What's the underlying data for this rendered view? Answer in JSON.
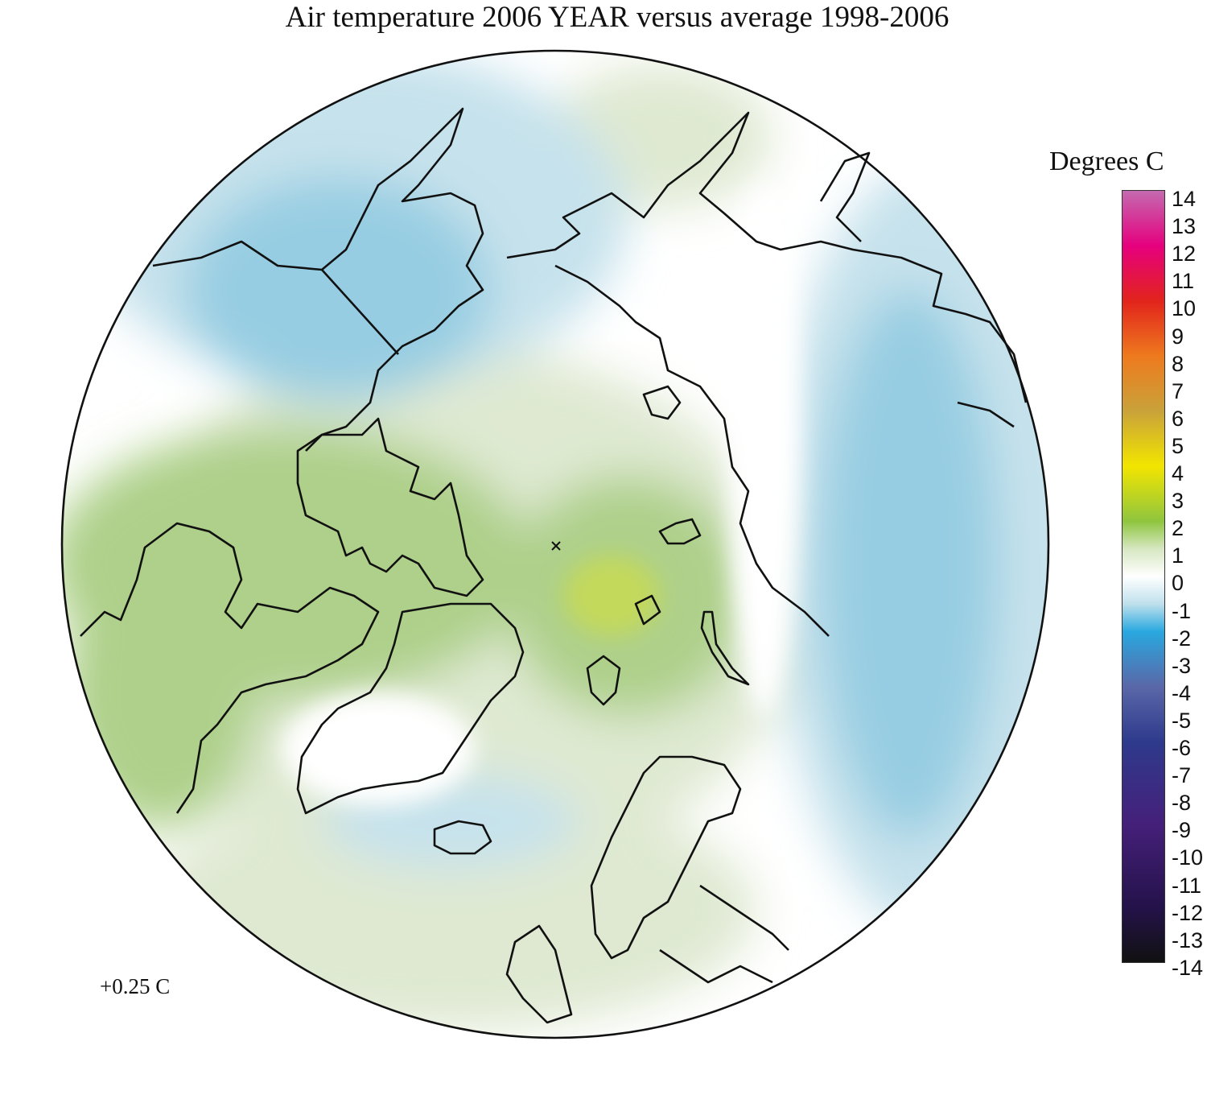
{
  "title": "Air temperature 2006 YEAR versus average 1998-2006",
  "legend": {
    "title": "Degrees C",
    "ticks": [
      "14",
      "13",
      "12",
      "11",
      "10",
      "9",
      "8",
      "7",
      "6",
      "5",
      "4",
      "3",
      "2",
      "1",
      "0",
      "-1",
      "-2",
      "-3",
      "-4",
      "-5",
      "-6",
      "-7",
      "-8",
      "-9",
      "-10",
      "-11",
      "-12",
      "-13",
      "-14"
    ],
    "range": [
      -14,
      14
    ],
    "colors": {
      "14": "#c46ab0",
      "12": "#e6007e",
      "10": "#e2241c",
      "8": "#ee7a1e",
      "6": "#c9a23a",
      "4": "#f2e500",
      "2": "#8fc53f",
      "1": "#d7e7c2",
      "0": "#ffffff",
      "-1": "#bfe0ec",
      "-2": "#29a8df",
      "-4": "#5a67a8",
      "-6": "#2e3a8c",
      "-9": "#45207a",
      "-12": "#24124a",
      "-14": "#111111"
    }
  },
  "annotation": "+0.25 C",
  "map": {
    "projection": "north polar stereographic",
    "anomaly_colors": {
      "cold": "#97cde2",
      "cool": "#c6e2ec",
      "neutral": "#ffffff",
      "mild": "#dfe9d2",
      "warm": "#aed08a",
      "hot": "#c3d95c"
    },
    "coastline_color": "#111111"
  }
}
